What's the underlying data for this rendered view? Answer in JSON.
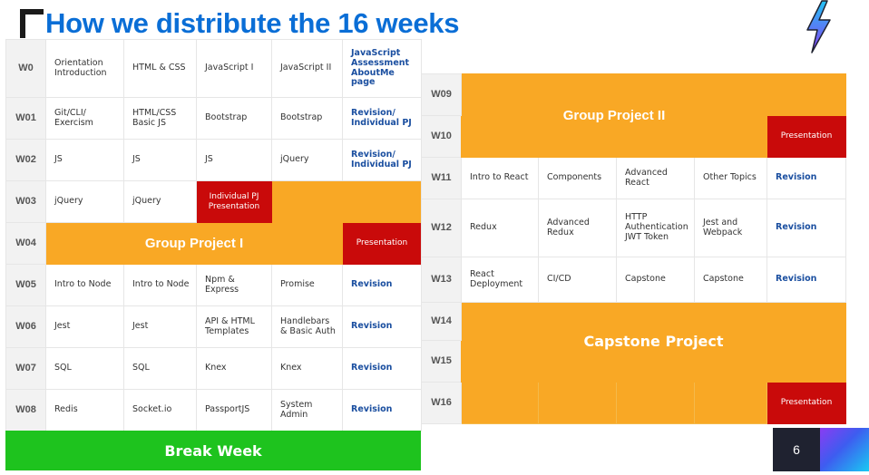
{
  "title": "How we distribute the 16 weeks",
  "page_number": "6",
  "break_week": "Break Week",
  "left_rows": [
    {
      "week": "W0",
      "cells": [
        "Orientation\nIntroduction",
        "HTML & CSS",
        "JavaScript I",
        "JavaScript II",
        "JavaScript\nAssessment\nAboutMe\npage"
      ]
    },
    {
      "week": "W01",
      "cells": [
        "Git/CLI/\nExercism",
        "HTML/CSS\nBasic JS",
        "Bootstrap",
        "Bootstrap",
        "Revision/\nIndividual PJ"
      ]
    },
    {
      "week": "W02",
      "cells": [
        "JS",
        "JS",
        "JS",
        "jQuery",
        "Revision/\nIndividual PJ"
      ]
    },
    {
      "week": "W03",
      "cells": [
        "jQuery",
        "jQuery",
        "Individual PJ\nPresentation"
      ]
    },
    {
      "week": "W04",
      "project": "Group Project I",
      "presentation": "Presentation"
    },
    {
      "week": "W05",
      "cells": [
        "Intro to Node",
        "Intro to Node",
        "Npm &\nExpress",
        "Promise",
        "Revision"
      ]
    },
    {
      "week": "W06",
      "cells": [
        "Jest",
        "Jest",
        "API & HTML\nTemplates",
        "Handlebars\n& Basic Auth",
        "Revision"
      ]
    },
    {
      "week": "W07",
      "cells": [
        "SQL",
        "SQL",
        "Knex",
        "Knex",
        "Revision"
      ]
    },
    {
      "week": "W08",
      "cells": [
        "Redis",
        "Socket.io",
        "PassportJS",
        "System\nAdmin",
        "Revision"
      ]
    }
  ],
  "right_rows": [
    {
      "week": "W09",
      "project": "Group Project II"
    },
    {
      "week": "W10",
      "presentation": "Presentation"
    },
    {
      "week": "W11",
      "cells": [
        "Intro to React",
        "Components",
        "Advanced\nReact",
        "Other Topics",
        "Revision"
      ]
    },
    {
      "week": "W12",
      "cells": [
        "Redux",
        "Advanced\nRedux",
        "HTTP\nAuthentication\nJWT Token",
        "Jest and\nWebpack",
        "Revision"
      ]
    },
    {
      "week": "W13",
      "cells": [
        "React\nDeployment",
        "CI/CD",
        "Capstone",
        "Capstone",
        "Revision"
      ]
    },
    {
      "week": "W14",
      "project": "Capstone Project"
    },
    {
      "week": "W15"
    },
    {
      "week": "W16",
      "presentation": "Presentation"
    }
  ],
  "colors": {
    "title": "#0a6ed6",
    "orange": "#f9a825",
    "red": "#c90a0a",
    "green": "#1ec31e",
    "revision": "#1b4fa0"
  },
  "icons": {
    "logo": "lightning-bolt-icon",
    "corner": "corner-bracket-icon"
  }
}
